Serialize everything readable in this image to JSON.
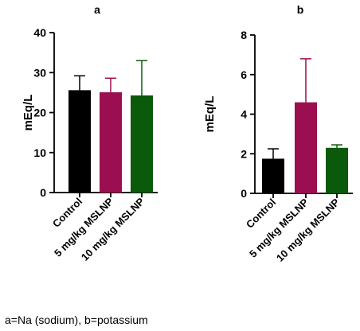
{
  "chart_data": [
    {
      "type": "bar",
      "title": "a",
      "ylabel": "mEq/L",
      "xlabel": "",
      "ylim": [
        0,
        40
      ],
      "yticks": [
        0,
        10,
        20,
        30,
        40
      ],
      "categories": [
        "Control",
        "5 mg/kg MSLNP",
        "10 mg/kg MSLNP"
      ],
      "values": [
        25.6,
        25.1,
        24.3
      ],
      "error_upper": [
        3.6,
        3.5,
        8.7
      ],
      "colors": [
        "#000000",
        "#9b0f50",
        "#0b5a0b"
      ],
      "grid": false,
      "legend": "none"
    },
    {
      "type": "bar",
      "title": "b",
      "ylabel": "mEq/L",
      "xlabel": "",
      "ylim": [
        0,
        8
      ],
      "yticks": [
        0,
        2,
        4,
        6,
        8
      ],
      "categories": [
        "Control",
        "5 mg/kg MSLNP",
        "10 mg/kg MSLNP"
      ],
      "values": [
        1.75,
        4.6,
        2.3
      ],
      "error_upper": [
        0.5,
        2.2,
        0.15
      ],
      "colors": [
        "#000000",
        "#9b0f50",
        "#0b5a0b"
      ],
      "grid": false,
      "legend": "none"
    }
  ],
  "caption": "a=Na (sodium), b=potassium"
}
